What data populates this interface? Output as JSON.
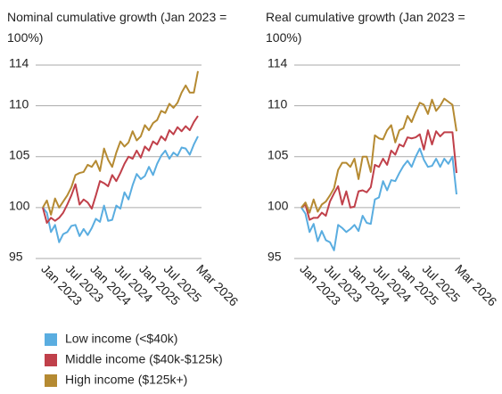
{
  "chart_data": [
    {
      "type": "line",
      "title": "Nominal cumulative growth (Jan 2023 = 100%)",
      "categories": [
        "Jan 2023",
        null,
        null,
        null,
        null,
        null,
        "Jul 2023",
        null,
        null,
        null,
        null,
        null,
        "Jan 2024",
        null,
        null,
        null,
        null,
        null,
        "Jul 2024",
        null,
        null,
        null,
        null,
        null,
        "Jan 2025",
        null,
        null,
        null,
        null,
        null,
        "Jul 2025",
        null,
        null,
        null,
        null,
        null,
        null,
        null,
        "Mar 2026"
      ],
      "ylim": [
        95,
        114
      ],
      "yticks": [
        95,
        100,
        105,
        110,
        114
      ],
      "grid": true,
      "series": [
        {
          "values": [
            100,
            99.5,
            97.6,
            98.3,
            96.6,
            97.4,
            97.6,
            98.2,
            98.3,
            97.2,
            97.9,
            97.3,
            98.0,
            98.9,
            98.6,
            100.2,
            98.7,
            98.8,
            100.2,
            99.9,
            101.5,
            100.8,
            102.2,
            103.3,
            102.8,
            103.1,
            104.0,
            103.2,
            104.3,
            105.1,
            105.6,
            104.8,
            105.4,
            105.1,
            105.9,
            105.8,
            105.2,
            106.2,
            107.0
          ]
        },
        {
          "values": [
            100,
            98.5,
            99.0,
            98.7,
            99.0,
            99.5,
            100.3,
            101.2,
            102.3,
            100.3,
            100.8,
            100.5,
            99.9,
            101.2,
            102.6,
            102.4,
            102.1,
            103.2,
            102.6,
            103.4,
            104.3,
            105.0,
            104.8,
            105.6,
            104.9,
            106.0,
            105.6,
            106.5,
            106.2,
            107.0,
            106.6,
            107.6,
            107.2,
            107.9,
            107.5,
            108.0,
            107.6,
            108.4,
            109.0
          ]
        },
        {
          "values": [
            100,
            100.7,
            99.3,
            100.9,
            100.0,
            100.6,
            101.2,
            102.0,
            103.2,
            103.4,
            103.5,
            104.2,
            104.0,
            104.6,
            103.6,
            105.8,
            104.7,
            104.0,
            105.4,
            106.5,
            106.0,
            106.4,
            107.5,
            106.6,
            107.0,
            108.1,
            107.6,
            108.3,
            108.6,
            109.5,
            109.3,
            110.2,
            109.8,
            110.3,
            111.3,
            112.0,
            111.3,
            111.3,
            113.4
          ]
        }
      ]
    },
    {
      "type": "line",
      "title": "Real cumulative growth (Jan 2023 = 100%)",
      "categories": [
        "Jan 2023",
        null,
        null,
        null,
        null,
        null,
        "Jul 2023",
        null,
        null,
        null,
        null,
        null,
        "Jan 2024",
        null,
        null,
        null,
        null,
        null,
        "Jul 2024",
        null,
        null,
        null,
        null,
        null,
        "Jan 2025",
        null,
        null,
        null,
        null,
        null,
        "Jul 2025",
        null,
        null,
        null,
        null,
        null,
        null,
        null,
        "Mar 2026"
      ],
      "ylim": [
        95,
        114
      ],
      "yticks": [
        95,
        100,
        105,
        110,
        114
      ],
      "grid": true,
      "series": [
        {
          "values": [
            100,
            99.4,
            97.6,
            98.4,
            96.7,
            97.7,
            96.8,
            96.6,
            95.8,
            98.3,
            98.0,
            97.6,
            97.9,
            98.3,
            97.7,
            99.2,
            98.5,
            98.4,
            100.8,
            101.0,
            102.6,
            101.7,
            102.7,
            102.6,
            103.4,
            104.1,
            104.6,
            104.0,
            105.0,
            105.8,
            104.7,
            104.0,
            104.1,
            104.8,
            104.0,
            104.8,
            104.3,
            105.0,
            101.3
          ]
        },
        {
          "values": [
            100,
            100.3,
            98.8,
            99.0,
            99.0,
            99.5,
            99.2,
            100.6,
            101.4,
            102.1,
            100.3,
            101.6,
            100.0,
            100.1,
            101.6,
            101.7,
            101.5,
            102.0,
            104.2,
            104.0,
            104.8,
            104.2,
            105.6,
            105.2,
            106.2,
            106.0,
            106.9,
            106.8,
            106.9,
            107.2,
            105.7,
            107.6,
            106.2,
            107.5,
            107.0,
            107.4,
            107.4,
            107.4,
            103.4
          ]
        },
        {
          "values": [
            100,
            100.5,
            99.5,
            100.8,
            99.6,
            100.3,
            100.6,
            101.2,
            101.9,
            103.7,
            104.4,
            104.4,
            104.0,
            104.8,
            102.8,
            105.0,
            105.0,
            103.5,
            107.1,
            106.8,
            106.7,
            107.6,
            108.1,
            106.4,
            107.6,
            107.8,
            109.0,
            108.4,
            109.4,
            110.3,
            110.1,
            109.2,
            110.6,
            109.5,
            110.0,
            110.7,
            110.4,
            110.1,
            107.5
          ]
        }
      ]
    }
  ],
  "legend": [
    {
      "name": "Low income (<$40k)",
      "color": "#5aade0"
    },
    {
      "name": "Middle income ($40k-$125k)",
      "color": "#c0404a"
    },
    {
      "name": "High income ($125k+)",
      "color": "#b58a32"
    }
  ]
}
